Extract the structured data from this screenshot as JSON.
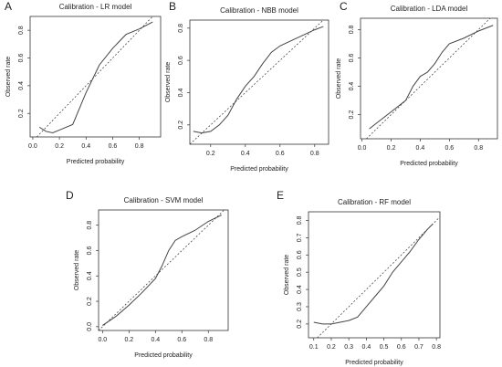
{
  "chart_data": [
    {
      "type": "line",
      "panel": "A",
      "title": "Calibration - LR model",
      "x_label": "Predicted probability",
      "y_label": "Observed rate",
      "x": [
        0.05,
        0.1,
        0.15,
        0.2,
        0.3,
        0.4,
        0.5,
        0.6,
        0.7,
        0.8,
        0.9
      ],
      "values": [
        0.1,
        0.07,
        0.06,
        0.08,
        0.12,
        0.35,
        0.55,
        0.67,
        0.77,
        0.81,
        0.86
      ],
      "color": "#444444",
      "diagonal": true,
      "xlim": [
        -0.02,
        0.96
      ],
      "ylim": [
        0.03,
        0.9
      ],
      "xticks": [
        {
          "value": 0,
          "label": "0.0"
        },
        0.2,
        0.4,
        0.6,
        0.8
      ],
      "yticks": [
        0.2,
        0.4,
        0.6,
        0.8
      ]
    },
    {
      "type": "line",
      "panel": "B",
      "title": "Calibration - NBB model",
      "x_label": "Predicted probability",
      "y_label": "Observed rate",
      "x": [
        0.1,
        0.15,
        0.2,
        0.25,
        0.3,
        0.35,
        0.4,
        0.45,
        0.5,
        0.55,
        0.6,
        0.7,
        0.8,
        0.85
      ],
      "values": [
        0.16,
        0.15,
        0.16,
        0.2,
        0.26,
        0.36,
        0.44,
        0.5,
        0.58,
        0.65,
        0.69,
        0.74,
        0.79,
        0.81
      ],
      "color": "#444444",
      "diagonal": true,
      "xlim": [
        0.08,
        0.88
      ],
      "ylim": [
        0.08,
        0.85
      ],
      "xticks": [
        0.2,
        0.4,
        0.6,
        0.8
      ],
      "yticks": [
        0.2,
        0.4,
        0.6,
        0.8
      ]
    },
    {
      "type": "line",
      "panel": "C",
      "title": "Calibration - LDA model",
      "x_label": "Predicted probability",
      "y_label": "Observed rate",
      "x": [
        0.05,
        0.1,
        0.2,
        0.3,
        0.35,
        0.4,
        0.45,
        0.5,
        0.55,
        0.6,
        0.7,
        0.8,
        0.9
      ],
      "values": [
        0.1,
        0.14,
        0.22,
        0.3,
        0.4,
        0.47,
        0.5,
        0.56,
        0.64,
        0.7,
        0.74,
        0.79,
        0.83
      ],
      "color": "#444444",
      "diagonal": true,
      "xlim": [
        -0.01,
        0.93
      ],
      "ylim": [
        0.03,
        0.88
      ],
      "xticks": [
        {
          "value": 0,
          "label": "0.0"
        },
        0.2,
        0.4,
        0.6,
        0.8
      ],
      "yticks": [
        0.2,
        0.4,
        0.6,
        0.8
      ]
    },
    {
      "type": "line",
      "panel": "D",
      "title": "Calibration - SVM model",
      "x_label": "Predicted probability",
      "y_label": "Observed rate",
      "x": [
        0,
        0.1,
        0.2,
        0.3,
        0.4,
        0.45,
        0.5,
        0.55,
        0.6,
        0.7,
        0.8,
        0.9
      ],
      "values": [
        0.01,
        0.08,
        0.17,
        0.27,
        0.38,
        0.48,
        0.6,
        0.68,
        0.71,
        0.76,
        0.83,
        0.88
      ],
      "color": "#444444",
      "diagonal": true,
      "xlim": [
        -0.03,
        0.95
      ],
      "ylim": [
        -0.03,
        0.92
      ],
      "xticks": [
        {
          "value": 0,
          "label": "0.0"
        },
        0.2,
        0.4,
        0.6,
        0.8
      ],
      "yticks": [
        {
          "value": 0,
          "label": "0.0"
        },
        0.2,
        0.4,
        0.6,
        0.8
      ]
    },
    {
      "type": "line",
      "panel": "E",
      "title": "Calibration - RF model",
      "x_label": "Predicted probability",
      "y_label": "Observed rate",
      "x": [
        0.1,
        0.15,
        0.2,
        0.25,
        0.3,
        0.35,
        0.4,
        0.45,
        0.5,
        0.55,
        0.6,
        0.65,
        0.7,
        0.75,
        0.78
      ],
      "values": [
        0.21,
        0.2,
        0.2,
        0.21,
        0.22,
        0.24,
        0.3,
        0.36,
        0.42,
        0.5,
        0.56,
        0.62,
        0.69,
        0.75,
        0.78
      ],
      "color": "#444444",
      "diagonal": true,
      "xlim": [
        0.07,
        0.82
      ],
      "ylim": [
        0.12,
        0.85
      ],
      "xticks": [
        0.1,
        0.2,
        0.3,
        0.4,
        0.5,
        0.6,
        0.7,
        0.8
      ],
      "yticks": [
        0.2,
        0.3,
        0.4,
        0.5,
        0.6,
        0.7,
        0.8
      ]
    }
  ]
}
